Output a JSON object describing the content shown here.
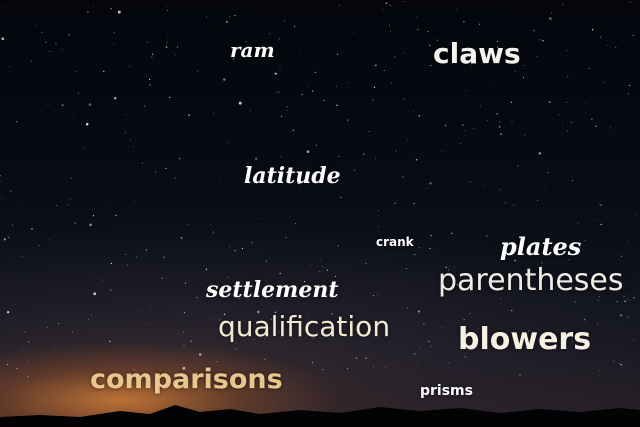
{
  "words": {
    "ram": "ram",
    "claws": "claws",
    "latitude": "latitude",
    "crank": "crank",
    "plates": "plates",
    "settlement": "settlement",
    "parentheses": "parentheses",
    "qualification": "qualification",
    "blowers": "blowers",
    "comparisons": "comparisons",
    "prisms": "prisms"
  },
  "colors": {
    "white_text": "#ffffff",
    "cream_text": "#f3ead2",
    "orange_text": "#e8c68e"
  }
}
